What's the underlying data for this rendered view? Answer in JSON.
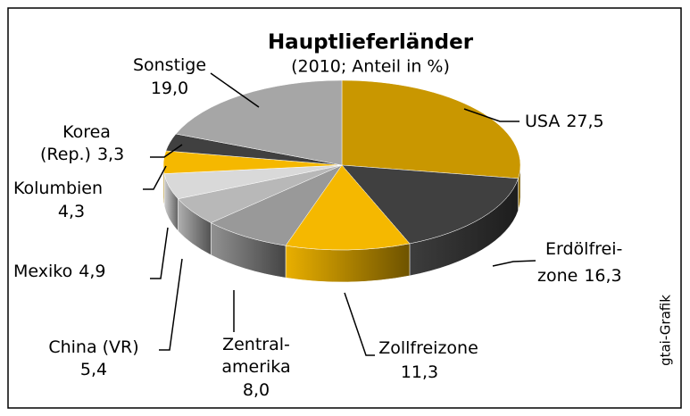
{
  "chart_data": {
    "type": "pie3d",
    "title": "Hauptlieferländer",
    "subtitle": "(2010; Anteil in %)",
    "source": "gtai-Grafik",
    "categories": [
      [
        "USA"
      ],
      [
        "Erdölfrei-",
        "zone"
      ],
      [
        "Zollfreizone"
      ],
      [
        "Zentral-",
        "amerika"
      ],
      [
        "China (VR)"
      ],
      [
        "Mexiko"
      ],
      [
        "Kolumbien"
      ],
      [
        "Korea",
        "(Rep.)"
      ],
      [
        "Sonstige"
      ]
    ],
    "values": [
      27.5,
      16.3,
      11.3,
      8.0,
      5.4,
      4.9,
      4.3,
      3.3,
      19.0
    ],
    "value_labels": [
      "27,5",
      "16,3",
      "11,3",
      "8,0",
      "5,4",
      "4,9",
      "4,3",
      "3,3",
      "19,0"
    ],
    "colors": [
      "#c99700",
      "#404040",
      "#f5b800",
      "#999999",
      "#b8b8b8",
      "#d9d9d9",
      "#f5b800",
      "#404040",
      "#a6a6a6"
    ]
  }
}
